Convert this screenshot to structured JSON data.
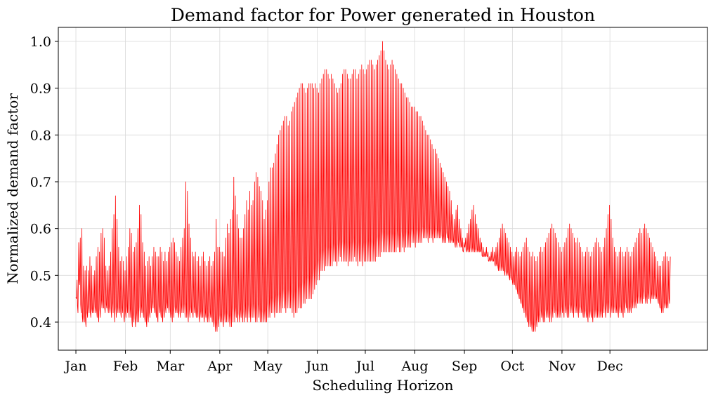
{
  "chart_data": {
    "type": "line",
    "title": "Demand factor for Power generated in Houston",
    "xlabel": "Scheduling Horizon",
    "ylabel": "Normalized demand factor",
    "x_unit": "day of year",
    "xlim": [
      -11,
      395
    ],
    "ylim": [
      0.34,
      1.03
    ],
    "y_ticks": [
      0.4,
      0.5,
      0.6,
      0.7,
      0.8,
      0.9,
      1.0
    ],
    "x_ticks": [
      {
        "label": "Jan",
        "day": 0
      },
      {
        "label": "Feb",
        "day": 31
      },
      {
        "label": "Mar",
        "day": 59
      },
      {
        "label": "Apr",
        "day": 90
      },
      {
        "label": "May",
        "day": 120
      },
      {
        "label": "Jun",
        "day": 151
      },
      {
        "label": "Jul",
        "day": 181
      },
      {
        "label": "Aug",
        "day": 212
      },
      {
        "label": "Sep",
        "day": 243
      },
      {
        "label": "Oct",
        "day": 273
      },
      {
        "label": "Nov",
        "day": 304
      },
      {
        "label": "Dec",
        "day": 334
      }
    ],
    "grid": true,
    "legend": "none",
    "series": [
      {
        "color": "#ff0000",
        "resolution": "daily",
        "x_start": 0,
        "daily_min": [
          0.45,
          0.42,
          0.48,
          0.42,
          0.4,
          0.4,
          0.39,
          0.41,
          0.42,
          0.41,
          0.42,
          0.42,
          0.42,
          0.41,
          0.4,
          0.41,
          0.43,
          0.43,
          0.42,
          0.43,
          0.42,
          0.42,
          0.41,
          0.42,
          0.4,
          0.41,
          0.42,
          0.42,
          0.41,
          0.42,
          0.4,
          0.41,
          0.42,
          0.41,
          0.41,
          0.39,
          0.4,
          0.39,
          0.4,
          0.4,
          0.41,
          0.42,
          0.41,
          0.4,
          0.39,
          0.4,
          0.41,
          0.42,
          0.43,
          0.42,
          0.41,
          0.4,
          0.42,
          0.41,
          0.4,
          0.41,
          0.42,
          0.43,
          0.42,
          0.41,
          0.4,
          0.41,
          0.42,
          0.42,
          0.41,
          0.41,
          0.42,
          0.42,
          0.41,
          0.41,
          0.4,
          0.41,
          0.42,
          0.41,
          0.42,
          0.41,
          0.41,
          0.4,
          0.41,
          0.41,
          0.4,
          0.41,
          0.4,
          0.4,
          0.41,
          0.4,
          0.39,
          0.38,
          0.38,
          0.39,
          0.4,
          0.4,
          0.39,
          0.4,
          0.4,
          0.4,
          0.39,
          0.39,
          0.4,
          0.4,
          0.41,
          0.4,
          0.4,
          0.41,
          0.4,
          0.4,
          0.41,
          0.4,
          0.41,
          0.4,
          0.41,
          0.41,
          0.4,
          0.4,
          0.41,
          0.4,
          0.4,
          0.4,
          0.4,
          0.4,
          0.41,
          0.41,
          0.42,
          0.42,
          0.41,
          0.42,
          0.42,
          0.42,
          0.42,
          0.43,
          0.43,
          0.42,
          0.43,
          0.43,
          0.43,
          0.42,
          0.41,
          0.42,
          0.42,
          0.43,
          0.43,
          0.43,
          0.44,
          0.44,
          0.45,
          0.45,
          0.45,
          0.45,
          0.46,
          0.47,
          0.48,
          0.49,
          0.49,
          0.51,
          0.51,
          0.51,
          0.52,
          0.52,
          0.52,
          0.52,
          0.52,
          0.53,
          0.53,
          0.52,
          0.53,
          0.54,
          0.53,
          0.53,
          0.53,
          0.53,
          0.52,
          0.53,
          0.53,
          0.53,
          0.54,
          0.53,
          0.52,
          0.53,
          0.53,
          0.52,
          0.53,
          0.53,
          0.53,
          0.53,
          0.53,
          0.53,
          0.53,
          0.53,
          0.54,
          0.54,
          0.54,
          0.55,
          0.55,
          0.55,
          0.55,
          0.55,
          0.55,
          0.55,
          0.55,
          0.55,
          0.55,
          0.56,
          0.55,
          0.55,
          0.56,
          0.55,
          0.56,
          0.56,
          0.56,
          0.56,
          0.57,
          0.57,
          0.56,
          0.57,
          0.57,
          0.57,
          0.57,
          0.58,
          0.58,
          0.58,
          0.57,
          0.58,
          0.58,
          0.57,
          0.58,
          0.58,
          0.58,
          0.58,
          0.58,
          0.57,
          0.57,
          0.57,
          0.58,
          0.57,
          0.57,
          0.57,
          0.57,
          0.56,
          0.56,
          0.57,
          0.56,
          0.56,
          0.55,
          0.56,
          0.55,
          0.55,
          0.55,
          0.55,
          0.55,
          0.55,
          0.55,
          0.55,
          0.55,
          0.55,
          0.54,
          0.54,
          0.54,
          0.54,
          0.53,
          0.53,
          0.53,
          0.53,
          0.52,
          0.52,
          0.51,
          0.51,
          0.51,
          0.51,
          0.5,
          0.5,
          0.5,
          0.49,
          0.49,
          0.48,
          0.48,
          0.47,
          0.46,
          0.45,
          0.44,
          0.43,
          0.42,
          0.41,
          0.4,
          0.39,
          0.39,
          0.38,
          0.38,
          0.38,
          0.39,
          0.4,
          0.4,
          0.41,
          0.4,
          0.4,
          0.41,
          0.41,
          0.4,
          0.4,
          0.41,
          0.42,
          0.41,
          0.41,
          0.41,
          0.41,
          0.42,
          0.41,
          0.42,
          0.41,
          0.41,
          0.42,
          0.42,
          0.41,
          0.42,
          0.42,
          0.41,
          0.42,
          0.42,
          0.41,
          0.41,
          0.41,
          0.4,
          0.41,
          0.41,
          0.4,
          0.41,
          0.41,
          0.41,
          0.41,
          0.41,
          0.41,
          0.42,
          0.41,
          0.42,
          0.42,
          0.41,
          0.42,
          0.42,
          0.42,
          0.42,
          0.41,
          0.42,
          0.42,
          0.41,
          0.42,
          0.43,
          0.42,
          0.42,
          0.42,
          0.43,
          0.43,
          0.43,
          0.44,
          0.44,
          0.44,
          0.44,
          0.45,
          0.44,
          0.44,
          0.45,
          0.44,
          0.45,
          0.45,
          0.45,
          0.45,
          0.44,
          0.43,
          0.42,
          0.42,
          0.43,
          0.43,
          0.43,
          0.44,
          0.44,
          0.45
        ],
        "daily_max": [
          0.49,
          0.57,
          0.58,
          0.6,
          0.52,
          0.51,
          0.52,
          0.51,
          0.54,
          0.52,
          0.5,
          0.51,
          0.54,
          0.56,
          0.55,
          0.59,
          0.6,
          0.58,
          0.52,
          0.51,
          0.52,
          0.55,
          0.6,
          0.63,
          0.67,
          0.62,
          0.56,
          0.53,
          0.54,
          0.53,
          0.51,
          0.54,
          0.56,
          0.6,
          0.59,
          0.55,
          0.56,
          0.57,
          0.6,
          0.65,
          0.63,
          0.57,
          0.55,
          0.52,
          0.53,
          0.54,
          0.52,
          0.54,
          0.56,
          0.55,
          0.54,
          0.54,
          0.56,
          0.55,
          0.53,
          0.55,
          0.53,
          0.55,
          0.56,
          0.57,
          0.58,
          0.57,
          0.55,
          0.54,
          0.53,
          0.56,
          0.58,
          0.6,
          0.7,
          0.68,
          0.61,
          0.58,
          0.55,
          0.54,
          0.55,
          0.53,
          0.54,
          0.52,
          0.54,
          0.55,
          0.53,
          0.52,
          0.53,
          0.54,
          0.52,
          0.53,
          0.55,
          0.62,
          0.56,
          0.56,
          0.55,
          0.55,
          0.54,
          0.58,
          0.61,
          0.59,
          0.62,
          0.64,
          0.71,
          0.67,
          0.63,
          0.6,
          0.58,
          0.58,
          0.6,
          0.63,
          0.66,
          0.64,
          0.68,
          0.65,
          0.66,
          0.7,
          0.72,
          0.71,
          0.69,
          0.68,
          0.66,
          0.62,
          0.64,
          0.66,
          0.7,
          0.73,
          0.73,
          0.74,
          0.76,
          0.78,
          0.8,
          0.81,
          0.82,
          0.83,
          0.84,
          0.84,
          0.82,
          0.83,
          0.85,
          0.86,
          0.87,
          0.88,
          0.89,
          0.9,
          0.91,
          0.91,
          0.9,
          0.89,
          0.9,
          0.91,
          0.91,
          0.91,
          0.9,
          0.91,
          0.9,
          0.89,
          0.91,
          0.92,
          0.93,
          0.94,
          0.94,
          0.93,
          0.92,
          0.93,
          0.92,
          0.91,
          0.9,
          0.89,
          0.9,
          0.91,
          0.93,
          0.94,
          0.94,
          0.93,
          0.92,
          0.92,
          0.93,
          0.94,
          0.94,
          0.92,
          0.93,
          0.94,
          0.95,
          0.94,
          0.93,
          0.94,
          0.95,
          0.96,
          0.96,
          0.95,
          0.94,
          0.95,
          0.96,
          0.97,
          0.98,
          1.0,
          0.98,
          0.96,
          0.95,
          0.94,
          0.95,
          0.96,
          0.95,
          0.94,
          0.93,
          0.92,
          0.91,
          0.91,
          0.9,
          0.89,
          0.88,
          0.88,
          0.87,
          0.86,
          0.86,
          0.86,
          0.85,
          0.85,
          0.84,
          0.84,
          0.83,
          0.82,
          0.81,
          0.8,
          0.8,
          0.79,
          0.78,
          0.77,
          0.77,
          0.76,
          0.75,
          0.74,
          0.73,
          0.72,
          0.71,
          0.7,
          0.69,
          0.68,
          0.66,
          0.63,
          0.62,
          0.64,
          0.65,
          0.62,
          0.6,
          0.58,
          0.57,
          0.58,
          0.59,
          0.61,
          0.62,
          0.64,
          0.65,
          0.63,
          0.61,
          0.6,
          0.58,
          0.57,
          0.56,
          0.55,
          0.56,
          0.55,
          0.54,
          0.55,
          0.56,
          0.55,
          0.56,
          0.57,
          0.58,
          0.6,
          0.61,
          0.6,
          0.59,
          0.58,
          0.57,
          0.56,
          0.55,
          0.54,
          0.55,
          0.56,
          0.55,
          0.54,
          0.55,
          0.56,
          0.57,
          0.58,
          0.56,
          0.55,
          0.54,
          0.55,
          0.54,
          0.53,
          0.54,
          0.55,
          0.56,
          0.55,
          0.56,
          0.57,
          0.58,
          0.59,
          0.6,
          0.61,
          0.6,
          0.59,
          0.58,
          0.57,
          0.56,
          0.55,
          0.56,
          0.57,
          0.58,
          0.6,
          0.61,
          0.6,
          0.59,
          0.58,
          0.57,
          0.58,
          0.57,
          0.56,
          0.55,
          0.54,
          0.55,
          0.56,
          0.55,
          0.54,
          0.55,
          0.56,
          0.57,
          0.58,
          0.57,
          0.56,
          0.55,
          0.56,
          0.58,
          0.6,
          0.63,
          0.65,
          0.62,
          0.58,
          0.56,
          0.55,
          0.54,
          0.55,
          0.56,
          0.55,
          0.54,
          0.55,
          0.56,
          0.55,
          0.54,
          0.55,
          0.56,
          0.57,
          0.58,
          0.59,
          0.6,
          0.59,
          0.6,
          0.61,
          0.6,
          0.59,
          0.58,
          0.57,
          0.56,
          0.55,
          0.54,
          0.53,
          0.52,
          0.52,
          0.53,
          0.54,
          0.55,
          0.54,
          0.53,
          0.54
        ]
      }
    ]
  }
}
